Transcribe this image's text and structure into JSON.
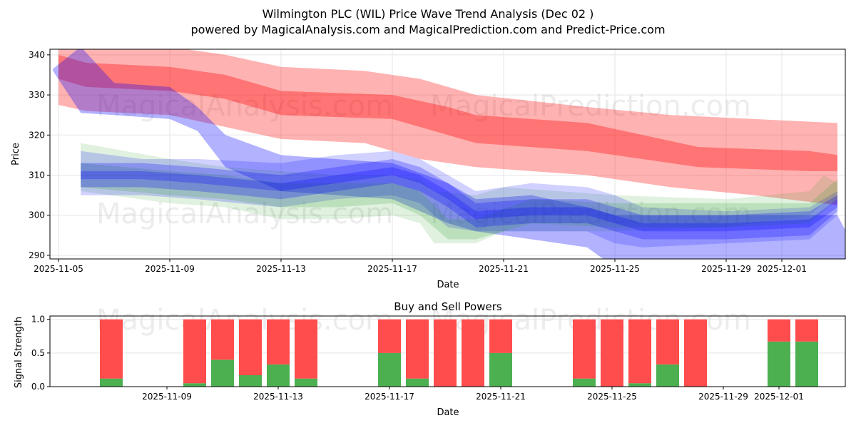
{
  "chart_data": [
    {
      "type": "area",
      "title": "Wilmington PLC (WIL) Price Wave Trend Analysis (Dec 02 )",
      "subtitle": "powered by MagicalAnalysis.com and MagicalPrediction.com and Predict-Price.com",
      "xlabel": "Date",
      "ylabel": "Price",
      "ylim": [
        289.1,
        341.4
      ],
      "xlim_days_from_2025_11_05": [
        -0.3,
        28.3
      ],
      "yticks": [
        "290",
        "300",
        "310",
        "320",
        "330",
        "340"
      ],
      "xticks": [
        "2025-11-05",
        "2025-11-09",
        "2025-11-13",
        "2025-11-17",
        "2025-11-21",
        "2025-11-25",
        "2025-11-29",
        "2025-12-01"
      ],
      "xtick_days": [
        0,
        4,
        8,
        12,
        16,
        20,
        24,
        26
      ],
      "watermarks": [
        "MagicalAnalysis.com",
        "MagicalPrediction.com"
      ],
      "grid": true,
      "bands": [
        {
          "name": "red-outer",
          "color": "#ff0000",
          "opacity": 0.3,
          "points": [
            [
              0,
              327.5,
              346
            ],
            [
              1,
              326,
              343
            ],
            [
              4,
              325,
              342
            ],
            [
              6,
              322,
              340
            ],
            [
              8,
              319,
              337
            ],
            [
              11,
              318,
              336
            ],
            [
              13,
              314,
              334
            ],
            [
              15,
              312,
              330
            ],
            [
              19,
              310,
              327
            ],
            [
              22,
              307,
              325
            ],
            [
              25,
              305,
              324
            ],
            [
              28,
              302.5,
              323
            ]
          ]
        },
        {
          "name": "red-inner",
          "color": "#ff0000",
          "opacity": 0.35,
          "points": [
            [
              0,
              334,
              340
            ],
            [
              1,
              332,
              338
            ],
            [
              4,
              331,
              337
            ],
            [
              6,
              329,
              335
            ],
            [
              8,
              325,
              331
            ],
            [
              12,
              324,
              330
            ],
            [
              14,
              320,
              327
            ],
            [
              15,
              318,
              325
            ],
            [
              19,
              316,
              323
            ],
            [
              21,
              314,
              320
            ],
            [
              23,
              312,
              317
            ],
            [
              27,
              311,
              316
            ],
            [
              28,
              311,
              315
            ]
          ]
        },
        {
          "name": "blue-wide",
          "color": "#0000ff",
          "opacity": 0.3,
          "points": [
            [
              -0.2,
              336,
              336.5
            ],
            [
              0.8,
              325.5,
              342
            ],
            [
              2,
              325,
              333
            ],
            [
              4,
              324,
              332
            ],
            [
              5,
              321,
              327
            ],
            [
              6,
              312,
              320
            ],
            [
              8,
              306,
              315
            ],
            [
              12,
              304,
              313
            ],
            [
              14,
              298,
              308
            ],
            [
              15,
              296,
              304
            ],
            [
              17,
              294,
              305
            ],
            [
              19,
              292,
              302
            ],
            [
              20,
              287,
              300
            ],
            [
              28,
              283,
              300
            ],
            [
              28.3,
              288,
              296
            ]
          ]
        },
        {
          "name": "green-wide",
          "color": "#2ca02c",
          "opacity": 0.15,
          "points": [
            [
              0.8,
              306,
              318
            ],
            [
              4,
              303,
              314
            ],
            [
              6,
              302,
              312
            ],
            [
              8,
              299,
              311
            ],
            [
              10,
              299,
              310
            ],
            [
              12,
              300,
              310
            ],
            [
              13,
              298,
              309
            ],
            [
              13.5,
              293,
              306
            ],
            [
              15,
              293,
              305
            ],
            [
              16,
              296,
              307
            ],
            [
              20,
              296,
              305
            ],
            [
              24,
              297,
              304
            ],
            [
              27,
              300,
              306
            ],
            [
              27.5,
              303,
              310
            ],
            [
              28,
              303,
              308
            ]
          ]
        },
        {
          "name": "blue-mid",
          "color": "#0000ff",
          "opacity": 0.18,
          "points": [
            [
              0.8,
              305,
              316
            ],
            [
              3,
              305,
              314
            ],
            [
              5,
              304,
              314
            ],
            [
              8,
              302,
              313
            ],
            [
              10,
              304,
              315
            ],
            [
              12,
              305,
              316
            ],
            [
              13,
              303,
              314
            ],
            [
              14,
              297,
              310
            ],
            [
              15,
              296,
              306
            ],
            [
              17,
              296,
              308
            ],
            [
              19,
              296,
              307
            ],
            [
              20,
              293,
              305
            ],
            [
              21,
              292,
              302
            ],
            [
              24,
              293,
              301
            ],
            [
              27,
              294,
              302
            ],
            [
              28,
              300,
              306
            ]
          ]
        },
        {
          "name": "green-mid",
          "color": "#2ca02c",
          "opacity": 0.2,
          "points": [
            [
              0.8,
              307,
              313
            ],
            [
              4,
              305,
              311
            ],
            [
              6,
              304,
              310
            ],
            [
              8,
              302,
              308
            ],
            [
              10,
              302,
              308
            ],
            [
              12,
              303,
              308
            ],
            [
              13,
              300,
              306
            ],
            [
              14,
              294,
              299
            ],
            [
              15,
              294,
              299
            ],
            [
              17,
              298,
              304
            ],
            [
              20,
              297,
              303
            ],
            [
              24,
              297,
              303
            ],
            [
              27,
              298,
              303
            ],
            [
              28,
              304,
              309
            ]
          ]
        },
        {
          "name": "blue-narrow",
          "color": "#0000ff",
          "opacity": 0.25,
          "points": [
            [
              0.8,
              307,
              313
            ],
            [
              3,
              307,
              313
            ],
            [
              5,
              306,
              312
            ],
            [
              8,
              304,
              310
            ],
            [
              10,
              306,
              312
            ],
            [
              12,
              308,
              314
            ],
            [
              13,
              306,
              312
            ],
            [
              14,
              302,
              308
            ],
            [
              15,
              297,
              303
            ],
            [
              17,
              298,
              304
            ],
            [
              19,
              298,
              304
            ],
            [
              20,
              296,
              302
            ],
            [
              21,
              294,
              300
            ],
            [
              24,
              294,
              300
            ],
            [
              27,
              295,
              301
            ],
            [
              28,
              301,
              305
            ]
          ]
        },
        {
          "name": "blue-core",
          "color": "#0000ff",
          "opacity": 0.25,
          "points": [
            [
              0.8,
              309,
              311
            ],
            [
              3,
              309,
              311
            ],
            [
              5,
              308,
              310
            ],
            [
              8,
              306,
              308
            ],
            [
              10,
              308,
              310
            ],
            [
              12,
              310,
              312
            ],
            [
              13,
              308,
              310
            ],
            [
              14,
              304,
              306
            ],
            [
              15,
              299,
              301
            ],
            [
              17,
              300,
              302
            ],
            [
              19,
              300,
              302
            ],
            [
              20,
              298,
              300
            ],
            [
              21,
              296,
              298
            ],
            [
              24,
              296,
              298
            ],
            [
              27,
              297,
              299
            ],
            [
              28,
              302,
              304
            ]
          ]
        }
      ]
    },
    {
      "type": "bar",
      "title": "Buy and Sell Powers",
      "xlabel": "Date",
      "ylabel": "Signal Strength",
      "ylim": [
        0,
        1.05
      ],
      "yticks": [
        "0.0",
        "0.5",
        "1.0"
      ],
      "xticks": [
        "2025-11-09",
        "2025-11-13",
        "2025-11-17",
        "2025-11-21",
        "2025-11-25",
        "2025-11-29",
        "2025-12-01"
      ],
      "xtick_days": [
        4,
        8,
        12,
        16,
        20,
        24,
        26
      ],
      "categories_days_from_2025_11_05": [
        2,
        5,
        6,
        7,
        8,
        9,
        12,
        13,
        14,
        15,
        16,
        19,
        20,
        21,
        22,
        23,
        26,
        27
      ],
      "categories": [
        "2025-11-07",
        "2025-11-10",
        "2025-11-11",
        "2025-11-12",
        "2025-11-13",
        "2025-11-14",
        "2025-11-17",
        "2025-11-18",
        "2025-11-19",
        "2025-11-20",
        "2025-11-21",
        "2025-11-24",
        "2025-11-25",
        "2025-11-26",
        "2025-11-27",
        "2025-11-28",
        "2025-12-01",
        "2025-12-02"
      ],
      "series": [
        {
          "name": "Buy",
          "color": "#4caf50",
          "values": [
            0.12,
            0.05,
            0.4,
            0.17,
            0.33,
            0.12,
            0.5,
            0.12,
            0,
            0,
            0.5,
            0.12,
            0,
            0.05,
            0.33,
            0,
            0.67,
            0.67
          ]
        },
        {
          "name": "Sell",
          "color": "#ff4c4c",
          "values": [
            0.88,
            0.95,
            0.6,
            0.83,
            0.67,
            0.88,
            0.5,
            0.88,
            1,
            1,
            0.5,
            0.88,
            1,
            0.95,
            0.67,
            1,
            0.33,
            0.33
          ]
        }
      ]
    }
  ]
}
